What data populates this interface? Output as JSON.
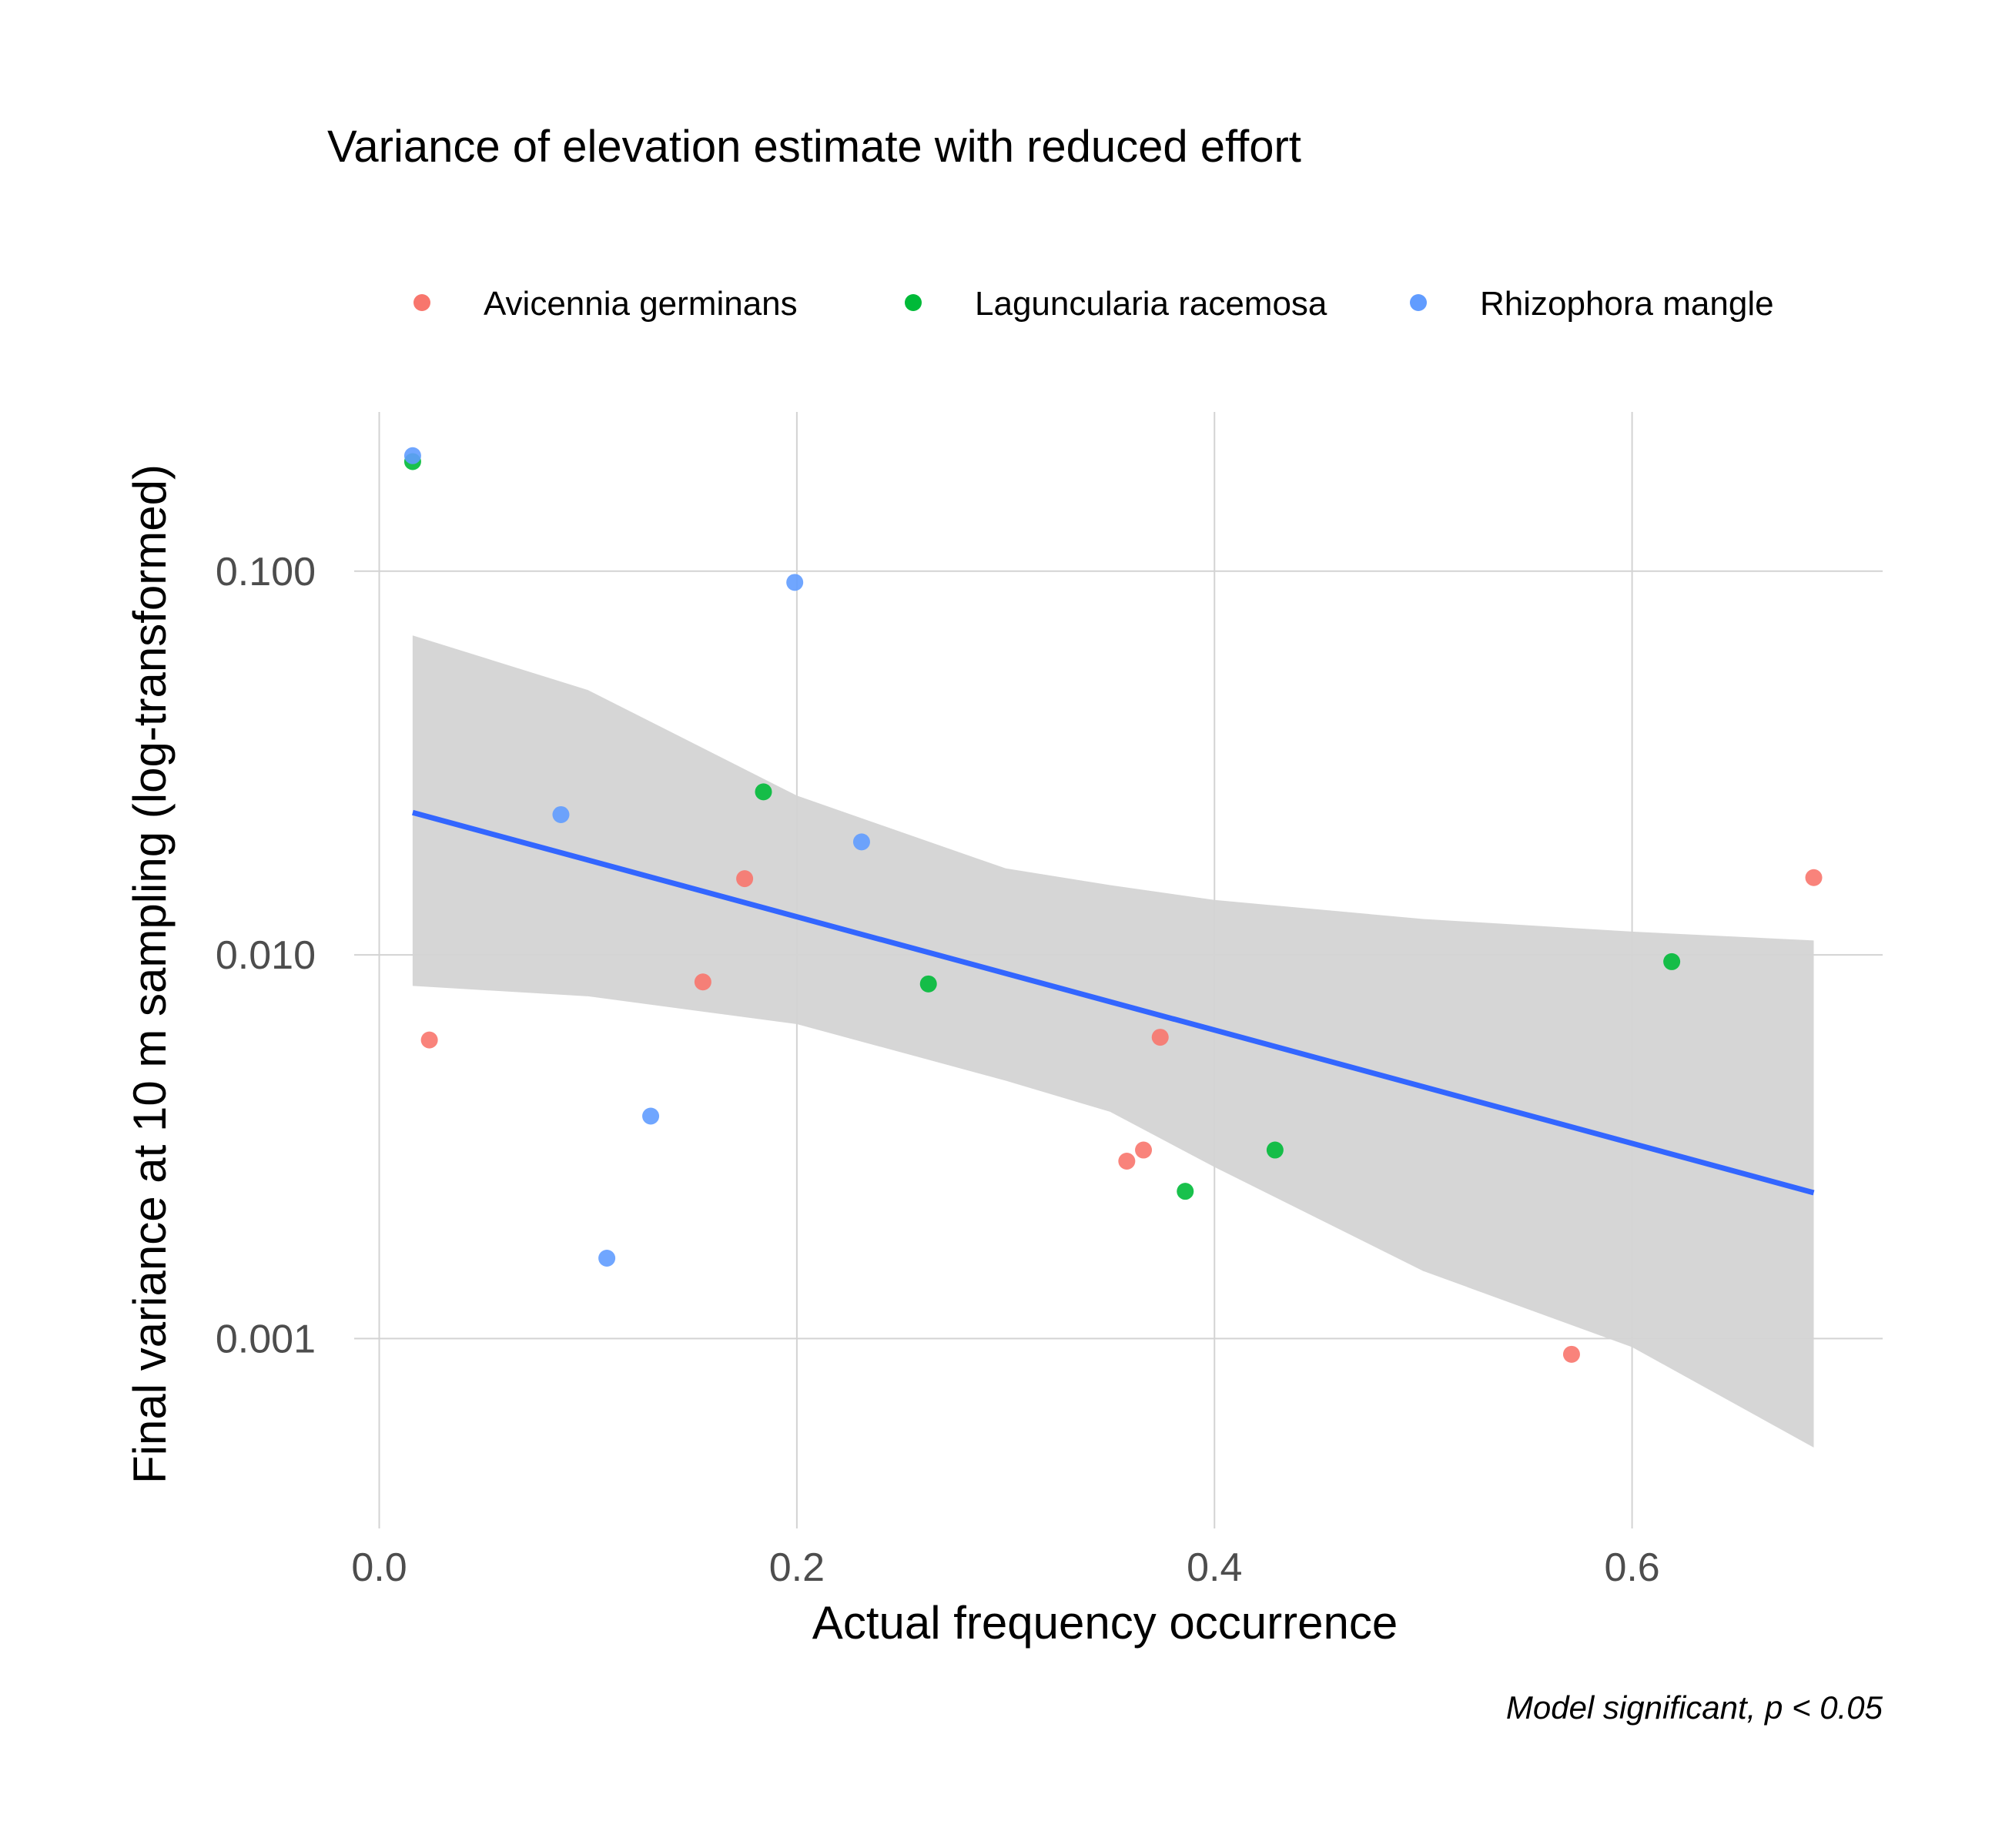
{
  "chart_data": {
    "type": "scatter",
    "title": "Variance of elevation estimate with reduced effort",
    "xlabel": "Actual frequency occurrence",
    "ylabel": "Final variance at 10 m sampling (log-transformed)",
    "caption": "Model significant, p  < 0.05",
    "y_scale": "log10",
    "xlim": [
      -0.012,
      0.72
    ],
    "ylim": [
      0.00032,
      0.26
    ],
    "grid": true,
    "legend_position": "top",
    "x_ticks": [
      {
        "value": 0.0,
        "label": "0.0"
      },
      {
        "value": 0.2,
        "label": "0.2"
      },
      {
        "value": 0.4,
        "label": "0.4"
      },
      {
        "value": 0.6,
        "label": "0.6"
      }
    ],
    "y_ticks": [
      {
        "value": 0.001,
        "label": "0.001"
      },
      {
        "value": 0.01,
        "label": "0.010"
      },
      {
        "value": 0.1,
        "label": "0.100"
      }
    ],
    "series": [
      {
        "name": "Avicennia germinans",
        "color": "#F8766D",
        "points": [
          {
            "x": 0.024,
            "y": 0.006
          },
          {
            "x": 0.155,
            "y": 0.0085
          },
          {
            "x": 0.175,
            "y": 0.0158
          },
          {
            "x": 0.358,
            "y": 0.0029
          },
          {
            "x": 0.366,
            "y": 0.0031
          },
          {
            "x": 0.374,
            "y": 0.0061
          },
          {
            "x": 0.571,
            "y": 0.00091
          },
          {
            "x": 0.687,
            "y": 0.0159
          }
        ]
      },
      {
        "name": "Laguncularia racemosa",
        "color": "#00BA38",
        "points": [
          {
            "x": 0.016,
            "y": 0.193
          },
          {
            "x": 0.184,
            "y": 0.0266
          },
          {
            "x": 0.263,
            "y": 0.0084
          },
          {
            "x": 0.386,
            "y": 0.00242
          },
          {
            "x": 0.429,
            "y": 0.0031
          },
          {
            "x": 0.619,
            "y": 0.0096
          }
        ]
      },
      {
        "name": "Rhizophora mangle",
        "color": "#619CFF",
        "points": [
          {
            "x": 0.016,
            "y": 0.2
          },
          {
            "x": 0.087,
            "y": 0.0232
          },
          {
            "x": 0.109,
            "y": 0.00162
          },
          {
            "x": 0.13,
            "y": 0.0038
          },
          {
            "x": 0.199,
            "y": 0.0935
          },
          {
            "x": 0.231,
            "y": 0.0197
          }
        ]
      }
    ],
    "fit": {
      "type": "linear",
      "color": "#3366FF",
      "ribbon_color": "#d4d4d4",
      "line": [
        {
          "x": 0.016,
          "y": 0.0235
        },
        {
          "x": 0.687,
          "y": 0.0024
        }
      ],
      "confidence_band": [
        {
          "x": 0.016,
          "lower": 0.0083,
          "upper": 0.068
        },
        {
          "x": 0.1,
          "lower": 0.0078,
          "upper": 0.049
        },
        {
          "x": 0.2,
          "lower": 0.0066,
          "upper": 0.026
        },
        {
          "x": 0.3,
          "lower": 0.0047,
          "upper": 0.0168
        },
        {
          "x": 0.35,
          "lower": 0.0039,
          "upper": 0.0152
        },
        {
          "x": 0.4,
          "lower": 0.0028,
          "upper": 0.0139
        },
        {
          "x": 0.5,
          "lower": 0.0015,
          "upper": 0.0124
        },
        {
          "x": 0.6,
          "lower": 0.00095,
          "upper": 0.0115
        },
        {
          "x": 0.687,
          "lower": 0.00052,
          "upper": 0.0109
        }
      ]
    }
  }
}
